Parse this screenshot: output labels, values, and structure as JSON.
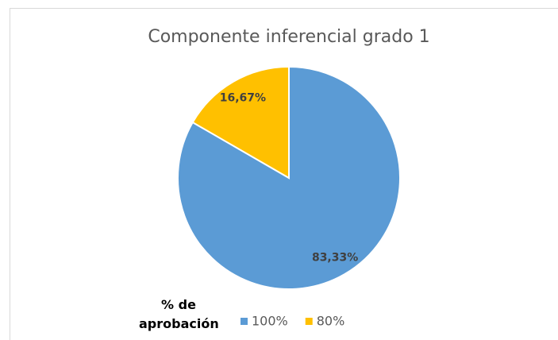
{
  "chart_data": {
    "type": "pie",
    "title": "Componente inferencial grado 1",
    "legend_title": "% de aprobación",
    "categories": [
      "100%",
      "80%"
    ],
    "values": [
      83.33,
      16.67
    ],
    "value_labels": [
      "83,33%",
      "16,67%"
    ],
    "colors": [
      "#5b9bd5",
      "#ffc000"
    ],
    "legend": "bottom"
  }
}
